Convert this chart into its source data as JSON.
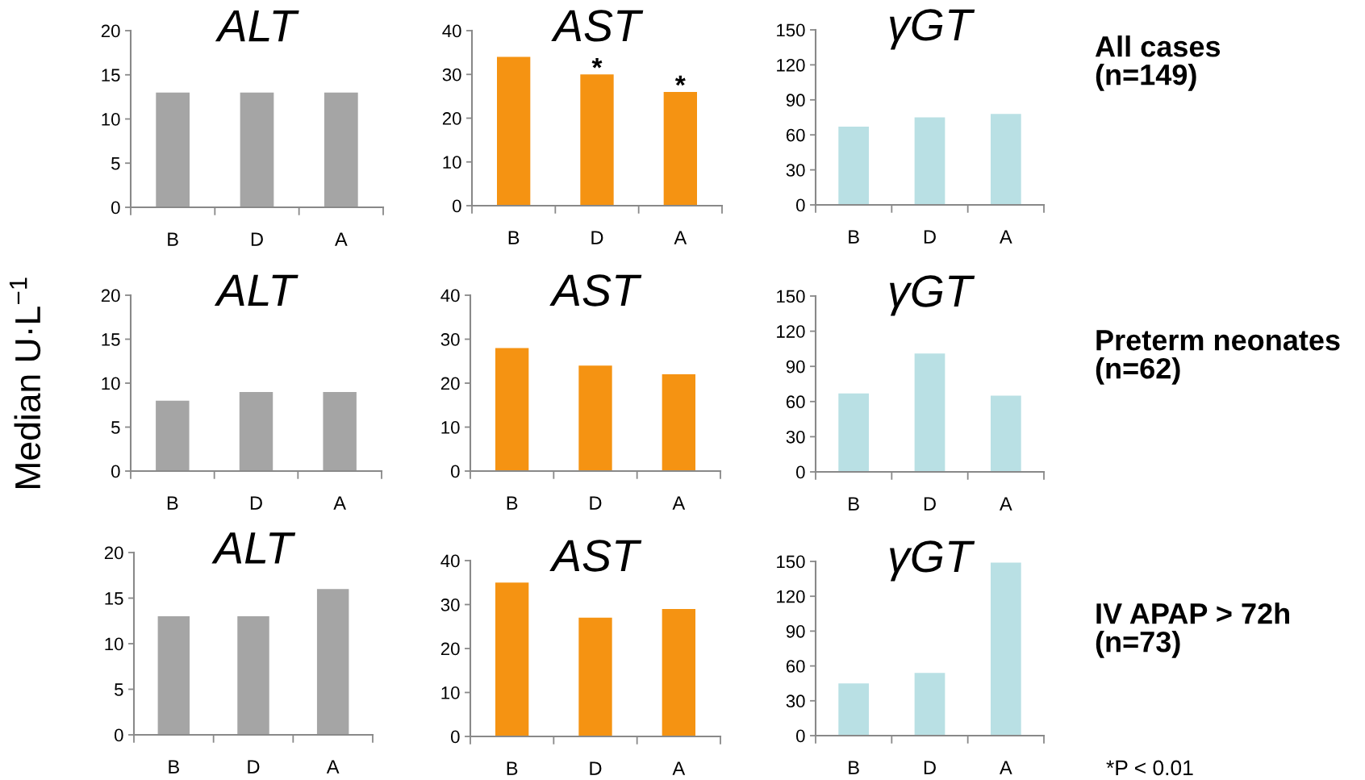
{
  "chart_data": [
    {
      "type": "bar",
      "title": "ALT",
      "categories": [
        "B",
        "D",
        "A"
      ],
      "values": [
        13,
        13,
        13
      ],
      "color": "#a5a5a5",
      "ylim": [
        0,
        20
      ],
      "yticks": [
        0,
        5,
        10,
        15,
        20
      ]
    },
    {
      "type": "bar",
      "title": "AST",
      "categories": [
        "B",
        "D",
        "A"
      ],
      "values": [
        34,
        30,
        26
      ],
      "color": "#f59312",
      "ylim": [
        0,
        40
      ],
      "yticks": [
        0,
        10,
        20,
        30,
        40
      ],
      "annotations": [
        {
          "text": "*",
          "x": "D",
          "y": 30
        },
        {
          "text": "*",
          "x": "A",
          "y": 26
        }
      ]
    },
    {
      "type": "bar",
      "title": "γGT",
      "categories": [
        "B",
        "D",
        "A"
      ],
      "values": [
        67,
        75,
        78
      ],
      "color": "#b9e0e4",
      "ylim": [
        0,
        150
      ],
      "yticks": [
        0,
        30,
        60,
        90,
        120,
        150
      ],
      "annotations": [
        "All cases\n(n=149)"
      ]
    },
    {
      "type": "bar",
      "title": "ALT",
      "ylabel": "Median U·L$^{−1}$",
      "categories": [
        "B",
        "D",
        "A"
      ],
      "values": [
        8,
        9,
        9
      ],
      "color": "#a5a5a5",
      "ylim": [
        0,
        20
      ],
      "yticks": [
        0,
        5,
        10,
        15,
        20
      ]
    },
    {
      "type": "bar",
      "title": "AST",
      "categories": [
        "B",
        "D",
        "A"
      ],
      "values": [
        28,
        24,
        22
      ],
      "color": "#f59312",
      "ylim": [
        0,
        40
      ],
      "yticks": [
        0,
        10,
        20,
        30,
        40
      ]
    },
    {
      "type": "bar",
      "title": "γGT",
      "categories": [
        "B",
        "D",
        "A"
      ],
      "values": [
        67,
        101,
        65
      ],
      "color": "#b9e0e4",
      "ylim": [
        0,
        150
      ],
      "yticks": [
        0,
        30,
        60,
        90,
        120,
        150
      ],
      "annotations": [
        "Preterm neonates\n(n=62)"
      ]
    },
    {
      "type": "bar",
      "title": "ALT",
      "categories": [
        "B",
        "D",
        "A"
      ],
      "values": [
        13,
        13,
        16
      ],
      "color": "#a5a5a5",
      "ylim": [
        0,
        20
      ],
      "yticks": [
        0,
        5,
        10,
        15,
        20
      ]
    },
    {
      "type": "bar",
      "title": "AST",
      "categories": [
        "B",
        "D",
        "A"
      ],
      "values": [
        35,
        27,
        29
      ],
      "color": "#f59312",
      "ylim": [
        0,
        40
      ],
      "yticks": [
        0,
        10,
        20,
        30,
        40
      ]
    },
    {
      "type": "bar",
      "title": "γGT",
      "categories": [
        "B",
        "D",
        "A"
      ],
      "values": [
        45,
        54,
        149
      ],
      "color": "#b9e0e4",
      "ylim": [
        0,
        150
      ],
      "yticks": [
        0,
        30,
        60,
        90,
        120,
        150
      ],
      "annotations": [
        "IV APAP > 72h\n(n=73)",
        "*P < 0.01"
      ]
    }
  ]
}
